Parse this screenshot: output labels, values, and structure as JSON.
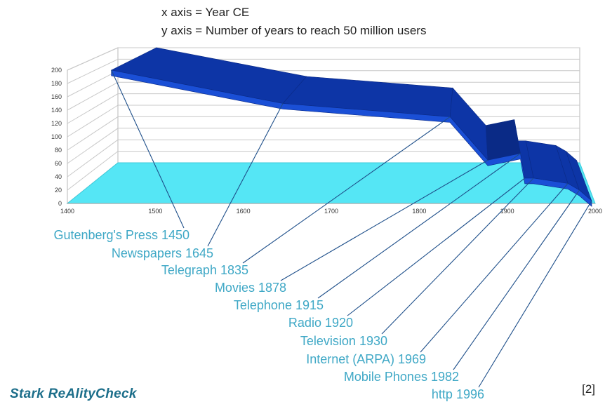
{
  "header": {
    "line1": "x axis = Year CE",
    "line2": "y axis = Number of years to reach 50 million users"
  },
  "reference": "[2]",
  "brand": "Stark ReAlityCheck",
  "colors": {
    "ribbon_front": "#1a4fd6",
    "ribbon_top": "#0d35a6",
    "ribbon_dark": "#0a2a86",
    "floor": "#55e6f5",
    "label": "#3fa8c6",
    "leader": "#1e4f8a",
    "grid": "#c8c8c8"
  },
  "chart_data": {
    "type": "area",
    "xlabel": "Year CE",
    "ylabel": "Number of years to reach 50 million users",
    "xlim": [
      1400,
      2000
    ],
    "ylim": [
      0,
      200
    ],
    "x_ticks": [
      "1400",
      "1500",
      "1600",
      "1700",
      "1800",
      "1900",
      "2000"
    ],
    "y_ticks": [
      "0",
      "20",
      "40",
      "60",
      "80",
      "100",
      "120",
      "140",
      "160",
      "180",
      "200"
    ],
    "grid": true,
    "points": [
      {
        "label": "Gutenberg's Press 1450",
        "year": 1450,
        "years_to_50m": 200
      },
      {
        "label": "Newspapers 1645",
        "year": 1645,
        "years_to_50m": 150
      },
      {
        "label": "Telegraph 1835",
        "year": 1835,
        "years_to_50m": 130
      },
      {
        "label": "Movies 1878",
        "year": 1878,
        "years_to_50m": 65
      },
      {
        "label": "Telephone 1915",
        "year": 1915,
        "years_to_50m": 75
      },
      {
        "label": "Radio  1920",
        "year": 1920,
        "years_to_50m": 38
      },
      {
        "label": "Television 1930",
        "year": 1930,
        "years_to_50m": 38
      },
      {
        "label": "Internet (ARPA)  1969",
        "year": 1969,
        "years_to_50m": 30
      },
      {
        "label": "Mobile Phones  1982",
        "year": 1982,
        "years_to_50m": 20
      },
      {
        "label": "http 1996",
        "year": 1996,
        "years_to_50m": 4
      }
    ]
  }
}
